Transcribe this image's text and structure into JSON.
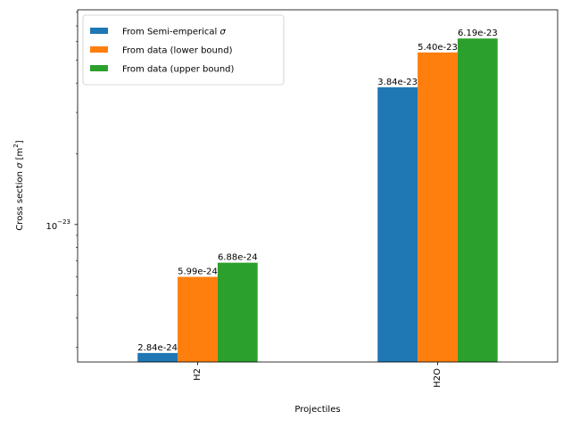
{
  "chart_data": {
    "type": "bar",
    "title": "",
    "xlabel": "Projectiles",
    "ylabel_prefix": "Cross section ",
    "ylabel_sigma": "σ",
    "ylabel_unit_open": " [m",
    "ylabel_unit_exp": "2",
    "ylabel_unit_close": "]",
    "yscale": "log",
    "ylim": [
      2.6e-24,
      8.2e-23
    ],
    "y_major_tick": {
      "value": 1e-23,
      "base": "10",
      "exponent": "−23"
    },
    "y_minor_ticks": [
      3e-24,
      4e-24,
      5e-24,
      6e-24,
      7e-24,
      8e-24,
      9e-24,
      2e-23,
      3e-23,
      4e-23,
      5e-23,
      6e-23,
      7e-23,
      8e-23
    ],
    "categories": [
      "H2",
      "H2O"
    ],
    "series": [
      {
        "name_main": "From Semi-emperical ",
        "name_sigma": "σ",
        "color": "#1f77b4",
        "values": [
          2.84e-24,
          3.84e-23
        ],
        "labels": [
          "2.84e-24",
          "3.84e-23"
        ]
      },
      {
        "name_main": "From data (lower bound)",
        "name_sigma": "",
        "color": "#ff7f0e",
        "values": [
          5.99e-24,
          5.4e-23
        ],
        "labels": [
          "5.99e-24",
          "5.40e-23"
        ]
      },
      {
        "name_main": "From data (upper bound)",
        "name_sigma": "",
        "color": "#2ca02c",
        "values": [
          6.88e-24,
          6.19e-23
        ],
        "labels": [
          "6.88e-24",
          "6.19e-23"
        ]
      }
    ],
    "legend_position": "top-left",
    "grid": false
  }
}
